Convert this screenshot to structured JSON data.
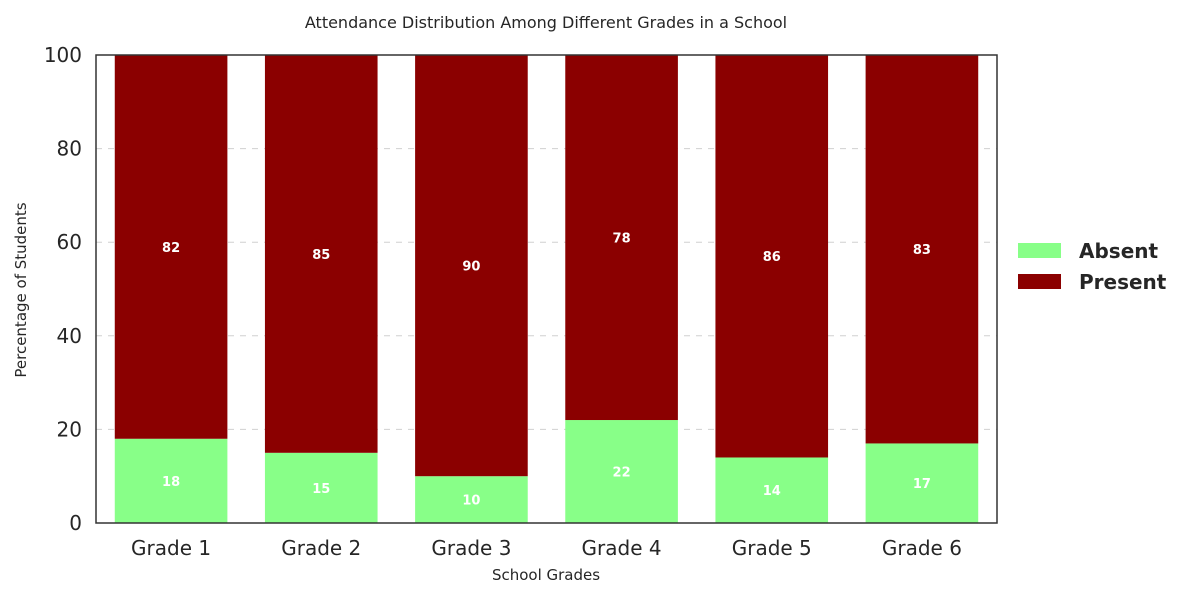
{
  "chart_data": {
    "type": "bar",
    "stacked": true,
    "title": "Attendance Distribution Among Different Grades in a School",
    "xlabel": "School Grades",
    "ylabel": "Percentage of Students",
    "ylim": [
      0,
      100
    ],
    "yticks": [
      0,
      20,
      40,
      60,
      80,
      100
    ],
    "grid": "horizontal dashed",
    "legend_position": "right",
    "categories": [
      "Grade 1",
      "Grade 2",
      "Grade 3",
      "Grade 4",
      "Grade 5",
      "Grade 6"
    ],
    "series": [
      {
        "name": "Absent",
        "color": "#88ff88",
        "values": [
          18,
          15,
          10,
          22,
          14,
          17
        ]
      },
      {
        "name": "Present",
        "color": "#8b0000",
        "values": [
          82,
          85,
          90,
          78,
          86,
          83
        ]
      }
    ]
  }
}
